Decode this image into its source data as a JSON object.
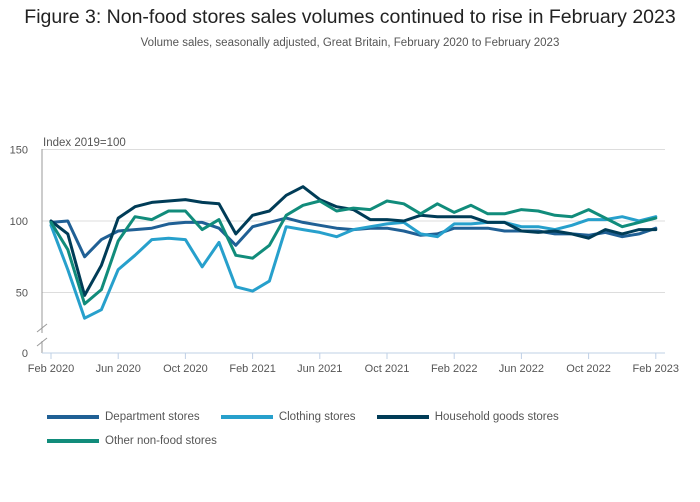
{
  "header": {
    "title": "Figure 3: Non-food stores sales volumes continued to rise in February 2023",
    "subtitle": "Volume sales, seasonally adjusted, Great Britain, February 2020 to February 2023"
  },
  "chart_data": {
    "type": "line",
    "title": "Figure 3: Non-food stores sales volumes continued to rise in February 2023",
    "subtitle": "Volume sales, seasonally adjusted, Great Britain, February 2020 to February 2023",
    "ylabel": "Index 2019=100",
    "xlabel": "",
    "ylim": [
      0,
      150
    ],
    "y_axis_break": true,
    "yticks": [
      0,
      50,
      100,
      150
    ],
    "grid": true,
    "legend_position": "bottom",
    "x": [
      "Feb 2020",
      "Mar 2020",
      "Apr 2020",
      "May 2020",
      "Jun 2020",
      "Jul 2020",
      "Aug 2020",
      "Sep 2020",
      "Oct 2020",
      "Nov 2020",
      "Dec 2020",
      "Jan 2021",
      "Feb 2021",
      "Mar 2021",
      "Apr 2021",
      "May 2021",
      "Jun 2021",
      "Jul 2021",
      "Aug 2021",
      "Sep 2021",
      "Oct 2021",
      "Nov 2021",
      "Dec 2021",
      "Jan 2022",
      "Feb 2022",
      "Mar 2022",
      "Apr 2022",
      "May 2022",
      "Jun 2022",
      "Jul 2022",
      "Aug 2022",
      "Sep 2022",
      "Oct 2022",
      "Nov 2022",
      "Dec 2022",
      "Jan 2023",
      "Feb 2023"
    ],
    "xtick_labels": [
      "Feb 2020",
      "Jun 2020",
      "Oct 2020",
      "Feb 2021",
      "Jun 2021",
      "Oct 2021",
      "Feb 2022",
      "Jun 2022",
      "Oct 2022",
      "Feb 2023"
    ],
    "series": [
      {
        "name": "Department stores",
        "color": "#206095",
        "values": [
          99,
          100,
          75,
          87,
          93,
          94,
          95,
          98,
          99,
          99,
          95,
          83,
          96,
          99,
          102,
          99,
          97,
          95,
          94,
          95,
          95,
          93,
          90,
          91,
          95,
          95,
          95,
          93,
          93,
          93,
          91,
          91,
          90,
          92,
          89,
          91,
          95
        ]
      },
      {
        "name": "Clothing stores",
        "color": "#27a0cc",
        "values": [
          97,
          66,
          32,
          38,
          66,
          76,
          87,
          88,
          87,
          68,
          85,
          54,
          51,
          58,
          96,
          94,
          92,
          89,
          94,
          96,
          98,
          99,
          91,
          89,
          98,
          98,
          99,
          99,
          96,
          96,
          94,
          97,
          101,
          101,
          103,
          100,
          103
        ]
      },
      {
        "name": "Household goods stores",
        "color": "#003c57",
        "values": [
          100,
          91,
          48,
          69,
          102,
          110,
          113,
          114,
          115,
          113,
          112,
          91,
          104,
          107,
          118,
          124,
          115,
          110,
          108,
          101,
          101,
          100,
          104,
          103,
          103,
          103,
          99,
          99,
          93,
          92,
          93,
          91,
          88,
          94,
          91,
          94,
          94
        ]
      },
      {
        "name": "Other non-food stores",
        "color": "#118c7b",
        "values": [
          99,
          80,
          42,
          52,
          86,
          103,
          101,
          107,
          107,
          94,
          101,
          76,
          74,
          83,
          104,
          111,
          114,
          107,
          109,
          108,
          114,
          112,
          105,
          112,
          106,
          111,
          105,
          105,
          108,
          107,
          104,
          103,
          108,
          102,
          96,
          99,
          102
        ]
      }
    ]
  },
  "legend": [
    {
      "label": "Department stores",
      "color": "#206095"
    },
    {
      "label": "Clothing stores",
      "color": "#27a0cc"
    },
    {
      "label": "Household goods stores",
      "color": "#003c57"
    },
    {
      "label": "Other non-food stores",
      "color": "#118c7b"
    }
  ]
}
